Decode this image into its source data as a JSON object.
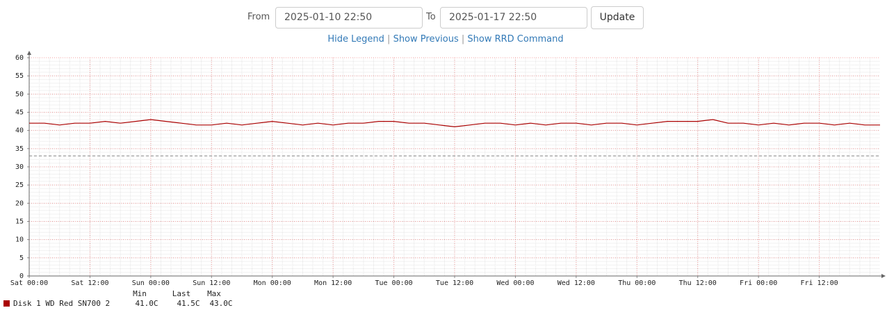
{
  "form": {
    "from_label": "From",
    "from_value": "2025-01-10 22:50",
    "to_label": "To",
    "to_value": "2025-01-17 22:50",
    "button": "Update"
  },
  "links": [
    "Hide Legend",
    "Show Previous",
    "Show RRD Command"
  ],
  "link_separator": "|",
  "chart_data": {
    "type": "line",
    "x": [
      0,
      3,
      6,
      9,
      12,
      15,
      18,
      21,
      24,
      27,
      30,
      33,
      36,
      39,
      42,
      45,
      48,
      51,
      54,
      57,
      60,
      63,
      66,
      69,
      72,
      75,
      78,
      81,
      84,
      87,
      90,
      93,
      96,
      99,
      102,
      105,
      108,
      111,
      114,
      117,
      120,
      123,
      126,
      129,
      132,
      135,
      138,
      141,
      144,
      147,
      150,
      153,
      156,
      159,
      162,
      165,
      168
    ],
    "series": [
      {
        "name": "Disk 1 WD Red SN700 2",
        "color": "#aa0000",
        "values": [
          42,
          42,
          41.5,
          42,
          42,
          42.5,
          42,
          42.5,
          43,
          42.5,
          42,
          41.5,
          41.5,
          42,
          41.5,
          42,
          42.5,
          42,
          41.5,
          42,
          41.5,
          42,
          42,
          42.5,
          42.5,
          42,
          42,
          41.5,
          41,
          41.5,
          42,
          42,
          41.5,
          42,
          41.5,
          42,
          42,
          41.5,
          42,
          42,
          41.5,
          42,
          42.5,
          42.5,
          42.5,
          43,
          42,
          42,
          41.5,
          42,
          41.5,
          42,
          42,
          41.5,
          42,
          41.5,
          41.5
        ]
      }
    ],
    "xlim": [
      0,
      168
    ],
    "xticks": [
      {
        "value": 0,
        "label": "Sat 00:00"
      },
      {
        "value": 12,
        "label": "Sat 12:00"
      },
      {
        "value": 24,
        "label": "Sun 00:00"
      },
      {
        "value": 36,
        "label": "Sun 12:00"
      },
      {
        "value": 48,
        "label": "Mon 00:00"
      },
      {
        "value": 60,
        "label": "Mon 12:00"
      },
      {
        "value": 72,
        "label": "Tue 00:00"
      },
      {
        "value": 84,
        "label": "Tue 12:00"
      },
      {
        "value": 96,
        "label": "Wed 00:00"
      },
      {
        "value": 108,
        "label": "Wed 12:00"
      },
      {
        "value": 120,
        "label": "Thu 00:00"
      },
      {
        "value": 132,
        "label": "Thu 12:00"
      },
      {
        "value": 144,
        "label": "Fri 00:00"
      },
      {
        "value": 156,
        "label": "Fri 12:00"
      }
    ],
    "ylim": [
      0,
      60
    ],
    "yticks": [
      0,
      5,
      10,
      15,
      20,
      25,
      30,
      35,
      40,
      45,
      50,
      55,
      60
    ],
    "grid": true,
    "reference_line": 33,
    "legend": {
      "columns": [
        "Min",
        "Last",
        "Max"
      ],
      "values": [
        "41.0C",
        "41.5C",
        "43.0C"
      ]
    }
  }
}
